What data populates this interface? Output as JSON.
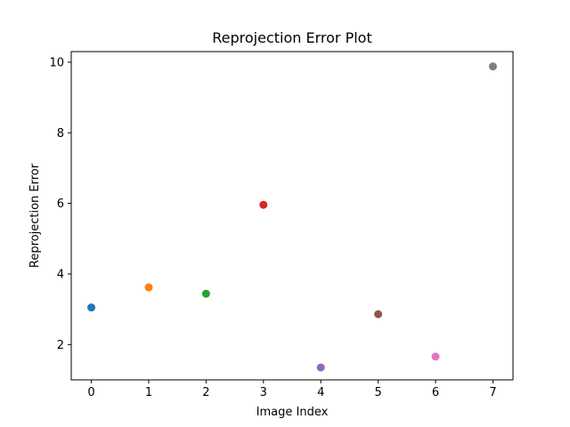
{
  "chart_data": {
    "type": "scatter",
    "title": "Reprojection Error Plot",
    "xlabel": "Image Index",
    "ylabel": "Reprojection Error",
    "xlim": [
      -0.35,
      7.35
    ],
    "ylim": [
      1.0,
      10.3
    ],
    "xticks": [
      0,
      1,
      2,
      3,
      4,
      5,
      6,
      7
    ],
    "yticks": [
      2,
      4,
      6,
      8,
      10
    ],
    "grid": false,
    "points": [
      {
        "x": 0,
        "y": 3.05,
        "color": "#1f77b4"
      },
      {
        "x": 1,
        "y": 3.62,
        "color": "#ff7f0e"
      },
      {
        "x": 2,
        "y": 3.44,
        "color": "#2ca02c"
      },
      {
        "x": 3,
        "y": 5.96,
        "color": "#d62728"
      },
      {
        "x": 4,
        "y": 1.35,
        "color": "#9467bd"
      },
      {
        "x": 5,
        "y": 2.86,
        "color": "#8c564b"
      },
      {
        "x": 6,
        "y": 1.66,
        "color": "#e377c2"
      },
      {
        "x": 7,
        "y": 9.88,
        "color": "#7f7f7f"
      }
    ]
  }
}
